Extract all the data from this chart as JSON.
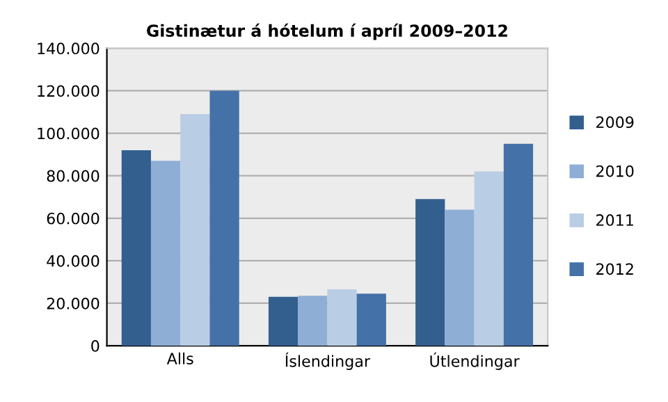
{
  "chart_data": {
    "type": "bar",
    "title": "Gistinætur á hótelum í apríl 2009–2012",
    "categories": [
      "Alls",
      "Íslendingar",
      "Útlendingar"
    ],
    "series": [
      {
        "name": "2009",
        "color": "#335f8f",
        "values": [
          92000,
          23000,
          69000
        ]
      },
      {
        "name": "2010",
        "color": "#8eaed6",
        "values": [
          87000,
          23500,
          64000
        ]
      },
      {
        "name": "2011",
        "color": "#b9cde5",
        "values": [
          109000,
          26500,
          82000
        ]
      },
      {
        "name": "2012",
        "color": "#4471a8",
        "values": [
          120000,
          24500,
          95000
        ]
      }
    ],
    "ylim": [
      0,
      140000
    ],
    "yticks": [
      {
        "value": 0,
        "label": "0"
      },
      {
        "value": 20000,
        "label": "20.000"
      },
      {
        "value": 40000,
        "label": "40.000"
      },
      {
        "value": 60000,
        "label": "60.000"
      },
      {
        "value": 80000,
        "label": "80.000"
      },
      {
        "value": 100000,
        "label": "100.000"
      },
      {
        "value": 120000,
        "label": "120.000"
      },
      {
        "value": 140000,
        "label": "140.000"
      }
    ],
    "grid": "y",
    "legend": "right"
  }
}
